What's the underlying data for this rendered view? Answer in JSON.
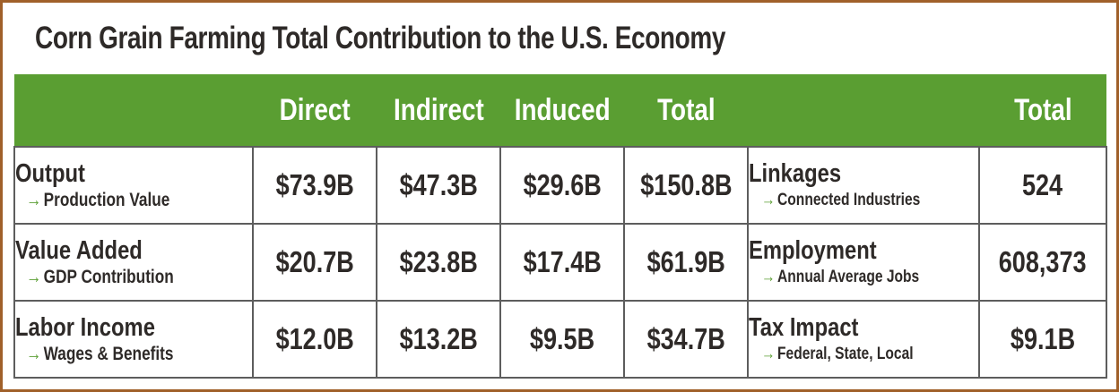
{
  "title": "Corn Grain Farming Total Contribution to the U.S. Economy",
  "headers": {
    "direct": "Direct",
    "indirect": "Indirect",
    "induced": "Induced",
    "total": "Total",
    "total2": "Total"
  },
  "rows": [
    {
      "label": "Output",
      "sub": "Production Value",
      "direct": "$73.9B",
      "indirect": "$47.3B",
      "induced": "$29.6B",
      "total": "$150.8B",
      "metric": "Linkages",
      "metric_sub": "Connected Industries",
      "metric_total": "524"
    },
    {
      "label": "Value Added",
      "sub": "GDP Contribution",
      "direct": "$20.7B",
      "indirect": "$23.8B",
      "induced": "$17.4B",
      "total": "$61.9B",
      "metric": "Employment",
      "metric_sub": "Annual Average Jobs",
      "metric_total": "608,373"
    },
    {
      "label": "Labor Income",
      "sub": "Wages & Benefits",
      "direct": "$12.0B",
      "indirect": "$13.2B",
      "induced": "$9.5B",
      "total": "$34.7B",
      "metric": "Tax Impact",
      "metric_sub": "Federal, State, Local",
      "metric_total": "$9.1B"
    }
  ],
  "arrow_glyph": "→",
  "colors": {
    "header_green": "#5a9e32",
    "border_brown": "#a0602a",
    "text_dark": "#2e2a28",
    "grid": "#5d5d5d"
  }
}
